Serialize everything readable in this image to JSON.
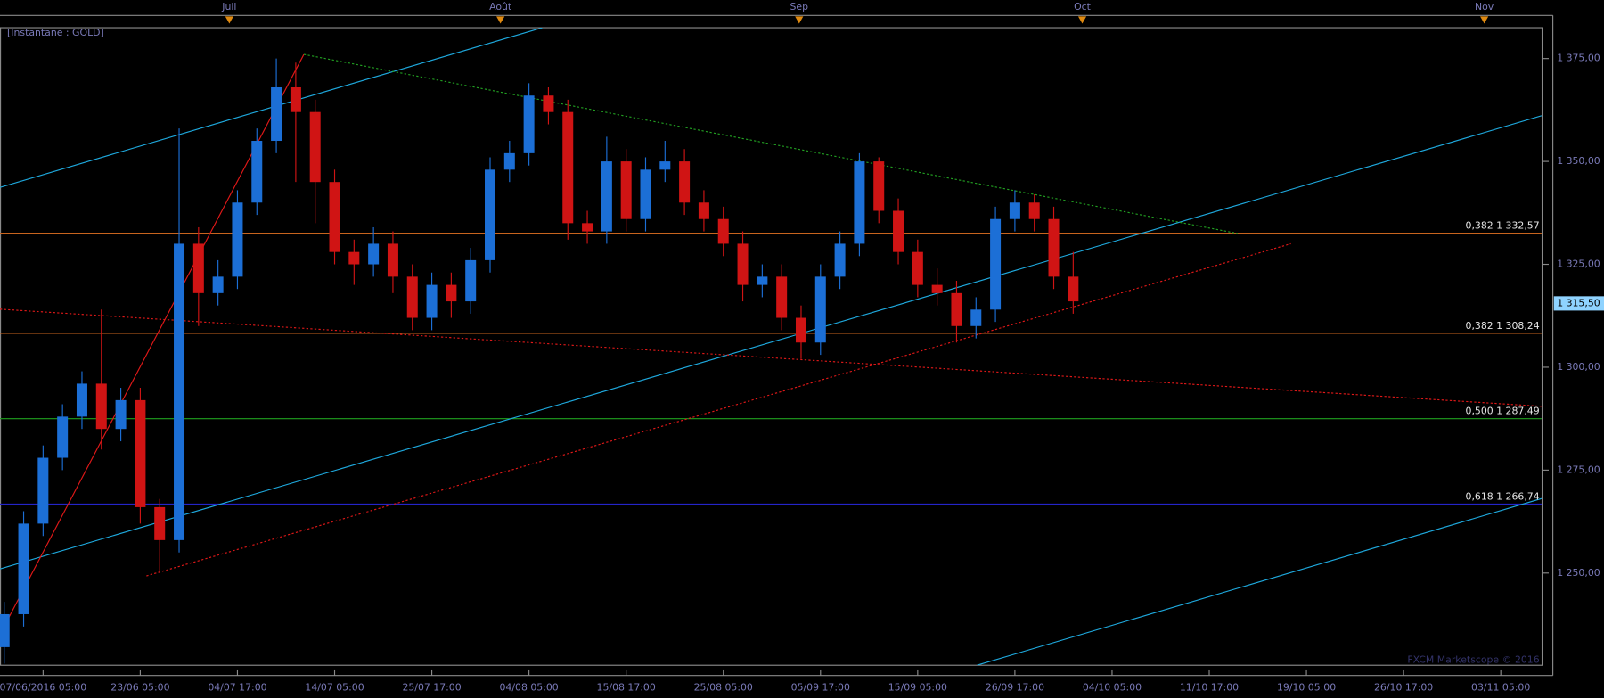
{
  "chart_data": {
    "type": "candlestick",
    "title": "[Instantane : GOLD]",
    "watermark": "FXCM Marketscope © 2016",
    "up_color": "#1c6fd6",
    "down_color": "#d01414",
    "x": [
      -12,
      -6,
      0,
      6,
      12,
      18,
      24,
      30,
      36,
      42,
      48,
      54,
      60,
      66,
      72,
      78,
      84,
      90,
      96,
      102,
      108,
      114,
      120,
      126,
      132,
      138,
      144,
      150,
      156,
      162,
      168,
      174,
      180,
      186,
      192,
      198,
      204,
      210,
      216,
      222,
      228,
      234,
      240,
      246,
      252,
      258,
      264,
      270,
      276,
      282,
      288,
      294,
      300,
      306,
      312,
      318
    ],
    "open": [
      1232,
      1240,
      1262,
      1278,
      1288,
      1296,
      1285,
      1292,
      1266,
      1258,
      1330,
      1318,
      1322,
      1340,
      1355,
      1368,
      1362,
      1345,
      1328,
      1325,
      1330,
      1322,
      1312,
      1320,
      1316,
      1326,
      1348,
      1352,
      1366,
      1362,
      1335,
      1333,
      1350,
      1336,
      1348,
      1350,
      1340,
      1336,
      1330,
      1320,
      1322,
      1312,
      1306,
      1322,
      1330,
      1350,
      1338,
      1328,
      1320,
      1318,
      1310,
      1314,
      1336,
      1340,
      1336,
      1322
    ],
    "high": [
      1243,
      1265,
      1281,
      1291,
      1299,
      1314,
      1295,
      1295,
      1268,
      1358,
      1334,
      1326,
      1343,
      1358,
      1375,
      1374,
      1365,
      1348,
      1331,
      1334,
      1333,
      1325,
      1323,
      1323,
      1329,
      1351,
      1355,
      1369,
      1368,
      1365,
      1338,
      1356,
      1353,
      1351,
      1355,
      1353,
      1343,
      1339,
      1333,
      1325,
      1325,
      1315,
      1325,
      1333,
      1352,
      1351,
      1341,
      1331,
      1324,
      1321,
      1317,
      1339,
      1343,
      1342,
      1339,
      1328
    ],
    "low": [
      1228,
      1237,
      1259,
      1275,
      1285,
      1280,
      1282,
      1262,
      1250,
      1255,
      1310,
      1315,
      1319,
      1337,
      1352,
      1345,
      1335,
      1325,
      1320,
      1322,
      1318,
      1309,
      1309,
      1312,
      1313,
      1323,
      1345,
      1349,
      1359,
      1331,
      1330,
      1330,
      1333,
      1333,
      1345,
      1337,
      1333,
      1327,
      1316,
      1317,
      1309,
      1302,
      1303,
      1319,
      1327,
      1335,
      1325,
      1317,
      1315,
      1306,
      1307,
      1311,
      1333,
      1333,
      1319,
      1313
    ],
    "close": [
      1240,
      1262,
      1278,
      1288,
      1296,
      1285,
      1292,
      1266,
      1258,
      1330,
      1318,
      1322,
      1340,
      1355,
      1368,
      1362,
      1345,
      1328,
      1325,
      1330,
      1322,
      1312,
      1320,
      1316,
      1326,
      1348,
      1352,
      1366,
      1362,
      1335,
      1333,
      1350,
      1336,
      1348,
      1350,
      1340,
      1336,
      1330,
      1320,
      1322,
      1312,
      1306,
      1322,
      1330,
      1350,
      1338,
      1328,
      1320,
      1318,
      1310,
      1314,
      1336,
      1340,
      1336,
      1322,
      1316
    ],
    "xlim": [
      -13.3,
      462.6
    ],
    "ylim": [
      1227.6,
      1382.5
    ],
    "yticks": [
      {
        "value": 1250,
        "label": "1 250,00"
      },
      {
        "value": 1275,
        "label": "1 275,00"
      },
      {
        "value": 1300,
        "label": "1 300,00"
      },
      {
        "value": 1325,
        "label": "1 325,00"
      },
      {
        "value": 1350,
        "label": "1 350,00"
      },
      {
        "value": 1375,
        "label": "1 375,00"
      }
    ],
    "xticks": [
      {
        "value": 0,
        "label": "07/06/2016 05:00"
      },
      {
        "value": 30,
        "label": "23/06 05:00"
      },
      {
        "value": 60,
        "label": "04/07 17:00"
      },
      {
        "value": 90,
        "label": "14/07 05:00"
      },
      {
        "value": 120,
        "label": "25/07 17:00"
      },
      {
        "value": 150,
        "label": "04/08 05:00"
      },
      {
        "value": 180,
        "label": "15/08 17:00"
      },
      {
        "value": 210,
        "label": "25/08 05:00"
      },
      {
        "value": 240,
        "label": "05/09 17:00"
      },
      {
        "value": 270,
        "label": "15/09 05:00"
      },
      {
        "value": 300,
        "label": "26/09 17:00"
      },
      {
        "value": 330,
        "label": "04/10 05:00"
      },
      {
        "value": 360,
        "label": "11/10 17:00"
      },
      {
        "value": 390,
        "label": "19/10 05:00"
      },
      {
        "value": 420,
        "label": "26/10 17:00"
      },
      {
        "value": 450,
        "label": "03/11 05:00"
      }
    ],
    "month_ticks": [
      {
        "value": 57.5,
        "label": "Juil"
      },
      {
        "value": 141.2,
        "label": "Août"
      },
      {
        "value": 233.4,
        "label": "Sep"
      },
      {
        "value": 320.8,
        "label": "Oct"
      },
      {
        "value": 444.9,
        "label": "Nov"
      }
    ],
    "levels": [
      {
        "value": 1332.57,
        "label": "0,382 1 332,57",
        "color": "#c8641e"
      },
      {
        "value": 1308.24,
        "label": "0,382 1 308,24",
        "color": "#c8641e"
      },
      {
        "value": 1287.49,
        "label": "0,500 1 287,49",
        "color": "#1fa01f"
      },
      {
        "value": 1266.74,
        "label": "0,618 1 266,74",
        "color": "#2424c8"
      }
    ],
    "last_price": {
      "value": 1315.5,
      "label": "1 315,50"
    },
    "trendlines": [
      {
        "x": [
          -13.3,
          154.1
        ],
        "y": [
          1343.7,
          1382.5
        ],
        "color": "#1ea8dc",
        "dashed": false
      },
      {
        "x": [
          -13.3,
          462.6
        ],
        "y": [
          1251.0,
          1361.1
        ],
        "color": "#1ea8dc",
        "dashed": false
      },
      {
        "x": [
          288.3,
          462.6
        ],
        "y": [
          1227.6,
          1268.1
        ],
        "color": "#1ea8dc",
        "dashed": false
      },
      {
        "x": [
          -13.3,
          80.5
        ],
        "y": [
          1235.1,
          1376.0
        ],
        "color": "#e01818",
        "dashed": false
      },
      {
        "x": [
          80.5,
          368.8
        ],
        "y": [
          1376.0,
          1332.5
        ],
        "color": "#22a022",
        "dashed": true
      },
      {
        "x": [
          -13.3,
          462.6
        ],
        "y": [
          1314.1,
          1290.5
        ],
        "color": "#e01818",
        "dashed": true
      },
      {
        "x": [
          31.9,
          385.2
        ],
        "y": [
          1249.3,
          1330.0
        ],
        "color": "#e01818",
        "dashed": true
      }
    ]
  }
}
